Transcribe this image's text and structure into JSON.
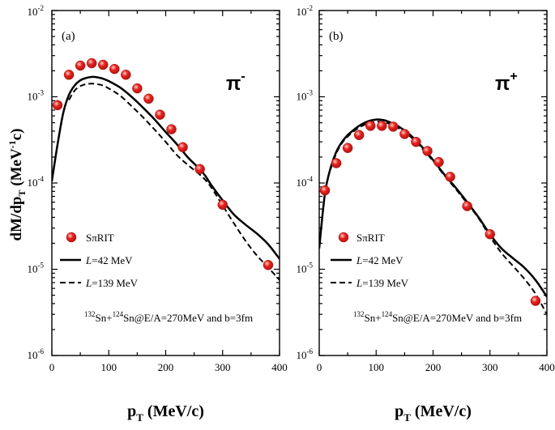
{
  "y_axis_title": {
    "main": "dM/dp",
    "sub": "T",
    "unit_open": " (MeV",
    "unit_sup": "-1",
    "unit_close": "c)"
  },
  "panels": [
    {
      "label": "(a)",
      "particle": "π",
      "charge": "-",
      "x_axis": {
        "main": "p",
        "sub": "T",
        "unit": " (MeV/c)"
      },
      "x_ticks": [
        "0",
        "100",
        "200",
        "300",
        "400"
      ],
      "y_ticks": [
        {
          "base": "10",
          "exp": "-6"
        },
        {
          "base": "10",
          "exp": "-5"
        },
        {
          "base": "10",
          "exp": "-4"
        },
        {
          "base": "10",
          "exp": "-3"
        },
        {
          "base": "10",
          "exp": "-2"
        }
      ],
      "legend": {
        "data": "SπRIT",
        "line1_var": "L",
        "line1_rest": "=42 MeV",
        "line2_var": "L",
        "line2_rest": "=139 MeV"
      },
      "reaction": {
        "a1": "132",
        "e1": "Sn+",
        "a2": "124",
        "e2": "Sn@E/A=270MeV and b=3fm"
      }
    },
    {
      "label": "(b)",
      "particle": "π",
      "charge": "+",
      "x_axis": {
        "main": "p",
        "sub": "T",
        "unit": " (MeV/c)"
      },
      "x_ticks": [
        "0",
        "100",
        "200",
        "300",
        "400"
      ],
      "y_ticks": [
        {
          "base": "10",
          "exp": "-6"
        },
        {
          "base": "10",
          "exp": "-5"
        },
        {
          "base": "10",
          "exp": "-4"
        },
        {
          "base": "10",
          "exp": "-3"
        },
        {
          "base": "10",
          "exp": "-2"
        }
      ],
      "legend": {
        "data": "SπRIT",
        "line1_var": "L",
        "line1_rest": "=42 MeV",
        "line2_var": "L",
        "line2_rest": "=139 MeV"
      },
      "reaction": {
        "a1": "132",
        "e1": "Sn+",
        "a2": "124",
        "e2": "Sn@E/A=270MeV and b=3fm"
      }
    }
  ],
  "colors": {
    "marker": "#e52420",
    "marker_highlight": "#ffd0c8",
    "line": "#000000"
  },
  "chart_data": [
    {
      "type": "scatter",
      "title": "",
      "panel": "(a)",
      "xlabel": "pT (MeV/c)",
      "ylabel": "dM/dpT (MeV-1c)",
      "xlim": [
        0,
        400
      ],
      "ylim": [
        1e-06,
        0.01
      ],
      "yscale": "log",
      "legend_position": "left-lower",
      "series": [
        {
          "name": "SπRIT",
          "style": "marker",
          "x": [
            10,
            30,
            50,
            70,
            90,
            110,
            130,
            150,
            170,
            190,
            210,
            230,
            260,
            300,
            380
          ],
          "y": [
            0.0008,
            0.0018,
            0.0023,
            0.00245,
            0.00235,
            0.0021,
            0.0018,
            0.00125,
            0.00095,
            0.00062,
            0.00042,
            0.00026,
            0.000145,
            5.6e-05,
            1.12e-05
          ]
        },
        {
          "name": "L=42 MeV",
          "style": "solid",
          "x": [
            0,
            10,
            20,
            30,
            40,
            50,
            60,
            70,
            80,
            90,
            100,
            120,
            140,
            160,
            180,
            200,
            220,
            240,
            260,
            270,
            280,
            300,
            320,
            340,
            360,
            380,
            400
          ],
          "y": [
            0.000105,
            0.00028,
            0.00065,
            0.00105,
            0.00135,
            0.00155,
            0.00165,
            0.0017,
            0.00168,
            0.00162,
            0.00152,
            0.00128,
            0.001,
            0.00075,
            0.00055,
            0.00039,
            0.00028,
            0.000195,
            0.000145,
            0.00012,
            9.5e-05,
            6.3e-05,
            4.3e-05,
            3.3e-05,
            2.6e-05,
            1.95e-05,
            1.32e-05
          ]
        },
        {
          "name": "L=139 MeV",
          "style": "dashed",
          "x": [
            30,
            40,
            50,
            60,
            70,
            80,
            90,
            100,
            120,
            140,
            160,
            180,
            200,
            220,
            240,
            260,
            270,
            280,
            300,
            320,
            340,
            360,
            380,
            400
          ],
          "y": [
            0.00092,
            0.00118,
            0.00133,
            0.0014,
            0.00142,
            0.0014,
            0.00135,
            0.00125,
            0.00103,
            0.00078,
            0.00058,
            0.00042,
            0.0003,
            0.00021,
            0.00016,
            0.000125,
            0.000108,
            8.9e-05,
            5.5e-05,
            3.4e-05,
            2.15e-05,
            1.45e-05,
            1.05e-05,
            7.5e-06
          ]
        }
      ]
    },
    {
      "type": "scatter",
      "title": "",
      "panel": "(b)",
      "xlabel": "pT (MeV/c)",
      "ylabel": "dM/dpT (MeV-1c)",
      "xlim": [
        0,
        400
      ],
      "ylim": [
        1e-06,
        0.01
      ],
      "yscale": "log",
      "legend_position": "left-lower",
      "series": [
        {
          "name": "SπRIT",
          "style": "marker",
          "x": [
            10,
            30,
            50,
            70,
            90,
            110,
            130,
            150,
            170,
            190,
            210,
            230,
            260,
            300,
            380
          ],
          "y": [
            8.2e-05,
            0.00017,
            0.000255,
            0.00036,
            0.00046,
            0.00046,
            0.00045,
            0.00037,
            0.0003,
            0.000235,
            0.000175,
            0.000118,
            5.4e-05,
            2.55e-05,
            4.3e-06
          ]
        },
        {
          "name": "L=42 MeV",
          "style": "solid",
          "x": [
            0,
            10,
            20,
            30,
            40,
            50,
            60,
            70,
            80,
            90,
            100,
            110,
            120,
            140,
            160,
            180,
            200,
            220,
            240,
            260,
            280,
            300,
            320,
            340,
            360,
            380,
            400
          ],
          "y": [
            1.75e-05,
            7.5e-05,
            0.00015,
            0.00023,
            0.0003,
            0.00036,
            0.00041,
            0.00046,
            0.0005,
            0.00053,
            0.000545,
            0.00054,
            0.00052,
            0.00045,
            0.00036,
            0.000265,
            0.000185,
            0.000125,
            8.8e-05,
            6e-05,
            4e-05,
            2.55e-05,
            1.75e-05,
            1.35e-05,
            1.05e-05,
            7.5e-06,
            4.8e-06
          ]
        },
        {
          "name": "L=139 MeV",
          "style": "dashed",
          "x": [
            20,
            30,
            40,
            50,
            60,
            70,
            80,
            90,
            100,
            110,
            120,
            140,
            160,
            180,
            200,
            220,
            240,
            260,
            280,
            300,
            320,
            340,
            360,
            380,
            400
          ],
          "y": [
            0.000145,
            0.00022,
            0.00029,
            0.000345,
            0.000395,
            0.00044,
            0.000475,
            0.0005,
            0.000515,
            0.00051,
            0.000495,
            0.00043,
            0.000345,
            0.000255,
            0.00018,
            0.000122,
            8.5e-05,
            5.8e-05,
            3.9e-05,
            2.4e-05,
            1.55e-05,
            1.1e-05,
            7.8e-06,
            5.2e-06,
            3e-06
          ]
        }
      ]
    }
  ]
}
